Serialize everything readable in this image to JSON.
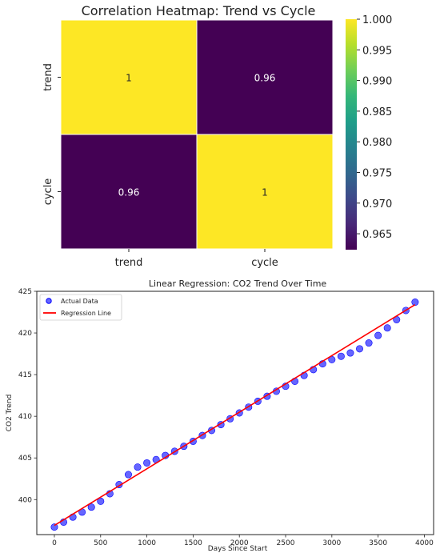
{
  "chart_data": [
    {
      "type": "heatmap",
      "title": "Correlation Heatmap: Trend vs Cycle",
      "rows": [
        "trend",
        "cycle"
      ],
      "cols": [
        "trend",
        "cycle"
      ],
      "values": [
        [
          1,
          0.96
        ],
        [
          0.96,
          1
        ]
      ],
      "cell_labels": [
        [
          "1",
          "0.96"
        ],
        [
          "0.96",
          "1"
        ]
      ],
      "colormap": "viridis",
      "low_color": "#440154",
      "high_color": "#fde725",
      "colorbar": {
        "range": [
          0.9624,
          1.0
        ],
        "ticks": [
          0.965,
          0.97,
          0.975,
          0.98,
          0.985,
          0.99,
          0.995,
          1.0
        ],
        "tick_labels": [
          "0.965",
          "0.970",
          "0.975",
          "0.980",
          "0.985",
          "0.990",
          "0.995",
          "1.000"
        ]
      }
    },
    {
      "type": "scatter",
      "title": "Linear Regression: CO2 Trend Over Time",
      "xlabel": "Days Since Start",
      "ylabel": "CO2 Trend",
      "xlim": [
        -190,
        4100
      ],
      "ylim": [
        395.8,
        425.0
      ],
      "xticks": [
        0,
        500,
        1000,
        1500,
        2000,
        2500,
        3000,
        3500,
        4000
      ],
      "yticks": [
        400,
        405,
        410,
        415,
        420,
        425
      ],
      "grid": false,
      "legend": {
        "position": "top-left",
        "entries": [
          "Actual Data",
          "Regression Line"
        ]
      },
      "series": [
        {
          "name": "Actual Data",
          "kind": "scatter",
          "color": "#0000ff",
          "x": [
            0,
            100,
            200,
            300,
            400,
            500,
            600,
            700,
            800,
            900,
            1000,
            1100,
            1200,
            1300,
            1400,
            1500,
            1600,
            1700,
            1800,
            1900,
            2000,
            2100,
            2200,
            2300,
            2400,
            2500,
            2600,
            2700,
            2800,
            2900,
            3000,
            3100,
            3200,
            3300,
            3400,
            3500,
            3600,
            3700,
            3800,
            3900
          ],
          "y": [
            396.7,
            397.3,
            397.9,
            398.5,
            399.1,
            399.8,
            400.7,
            401.8,
            403.0,
            403.9,
            404.4,
            404.8,
            405.3,
            405.8,
            406.4,
            407.0,
            407.7,
            408.3,
            409.0,
            409.7,
            410.4,
            411.1,
            411.8,
            412.4,
            413.0,
            413.6,
            414.2,
            414.9,
            415.6,
            416.3,
            416.8,
            417.2,
            417.6,
            418.1,
            418.8,
            419.7,
            420.6,
            421.6,
            422.7,
            423.7
          ]
        },
        {
          "name": "Regression Line",
          "kind": "line",
          "color": "#ff0000",
          "x": [
            0,
            3900
          ],
          "y": [
            396.9,
            423.4
          ]
        }
      ]
    }
  ]
}
